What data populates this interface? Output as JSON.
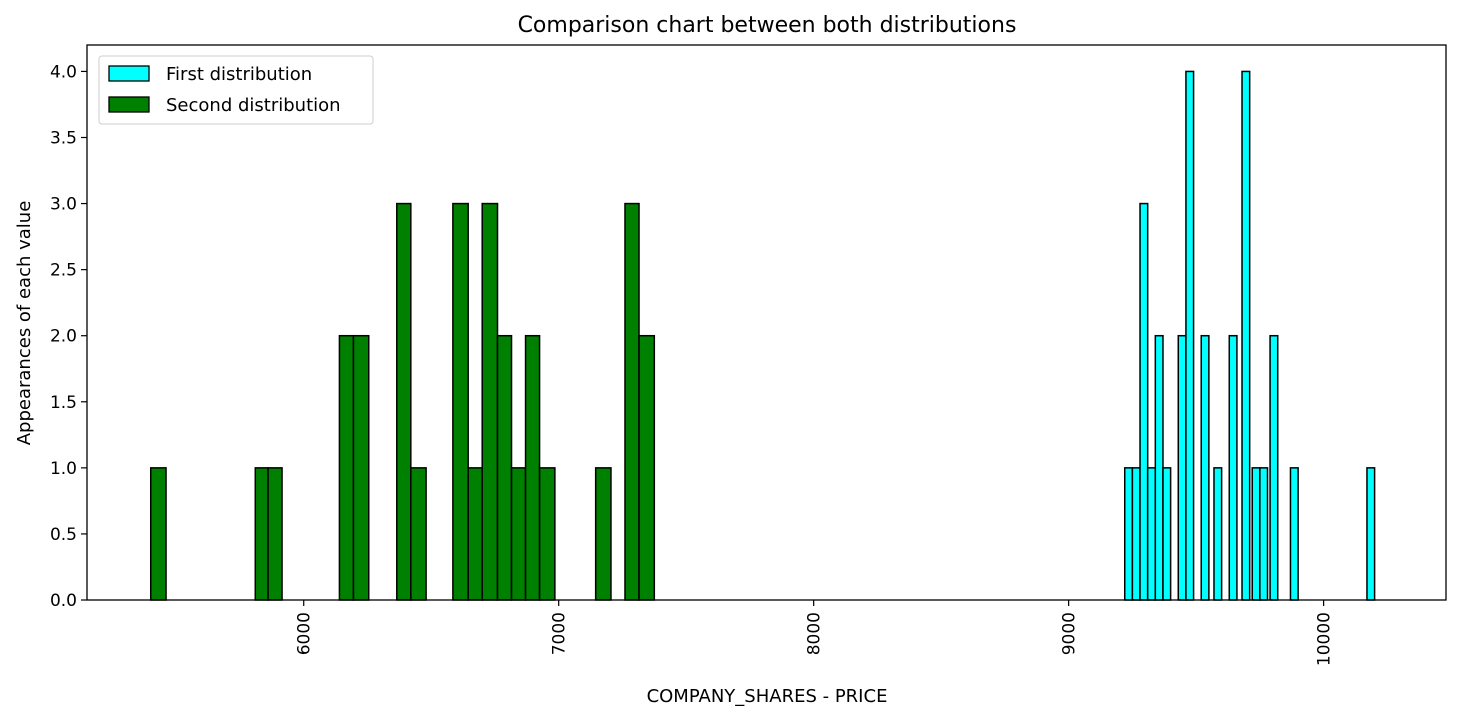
{
  "chart_data": {
    "type": "bar",
    "title": "Comparison chart between both distributions",
    "xlabel": "COMPANY_SHARES - PRICE",
    "ylabel": "Appearances of each value",
    "xlim": [
      5150,
      10480
    ],
    "ylim": [
      0,
      4.2
    ],
    "x_ticks": [
      6000,
      7000,
      8000,
      9000,
      10000
    ],
    "y_ticks": [
      0.0,
      0.5,
      1.0,
      1.5,
      2.0,
      2.5,
      3.0,
      3.5,
      4.0
    ],
    "legend_position": "top-left",
    "grid": false,
    "series": [
      {
        "name": "First distribution",
        "color": "#00ffff",
        "bins": [
          {
            "x0": 9220,
            "x1": 9250,
            "count": 1
          },
          {
            "x0": 9250,
            "x1": 9280,
            "count": 1
          },
          {
            "x0": 9280,
            "x1": 9310,
            "count": 3
          },
          {
            "x0": 9310,
            "x1": 9340,
            "count": 1
          },
          {
            "x0": 9340,
            "x1": 9370,
            "count": 2
          },
          {
            "x0": 9370,
            "x1": 9400,
            "count": 1
          },
          {
            "x0": 9430,
            "x1": 9460,
            "count": 2
          },
          {
            "x0": 9460,
            "x1": 9490,
            "count": 4
          },
          {
            "x0": 9520,
            "x1": 9550,
            "count": 2
          },
          {
            "x0": 9570,
            "x1": 9600,
            "count": 1
          },
          {
            "x0": 9630,
            "x1": 9660,
            "count": 2
          },
          {
            "x0": 9680,
            "x1": 9710,
            "count": 4
          },
          {
            "x0": 9720,
            "x1": 9750,
            "count": 1
          },
          {
            "x0": 9750,
            "x1": 9780,
            "count": 1
          },
          {
            "x0": 9790,
            "x1": 9820,
            "count": 2
          },
          {
            "x0": 9870,
            "x1": 9900,
            "count": 1
          },
          {
            "x0": 10170,
            "x1": 10200,
            "count": 1
          }
        ]
      },
      {
        "name": "Second distribution",
        "color": "#008000",
        "bins": [
          {
            "x0": 5400,
            "x1": 5460,
            "count": 1
          },
          {
            "x0": 5810,
            "x1": 5860,
            "count": 1
          },
          {
            "x0": 5860,
            "x1": 5915,
            "count": 1
          },
          {
            "x0": 6140,
            "x1": 6195,
            "count": 2
          },
          {
            "x0": 6195,
            "x1": 6255,
            "count": 2
          },
          {
            "x0": 6365,
            "x1": 6420,
            "count": 3
          },
          {
            "x0": 6420,
            "x1": 6480,
            "count": 1
          },
          {
            "x0": 6585,
            "x1": 6645,
            "count": 3
          },
          {
            "x0": 6645,
            "x1": 6700,
            "count": 1
          },
          {
            "x0": 6700,
            "x1": 6760,
            "count": 3
          },
          {
            "x0": 6760,
            "x1": 6815,
            "count": 2
          },
          {
            "x0": 6815,
            "x1": 6870,
            "count": 1
          },
          {
            "x0": 6870,
            "x1": 6925,
            "count": 2
          },
          {
            "x0": 6925,
            "x1": 6985,
            "count": 1
          },
          {
            "x0": 7145,
            "x1": 7205,
            "count": 1
          },
          {
            "x0": 7260,
            "x1": 7315,
            "count": 3
          },
          {
            "x0": 7315,
            "x1": 7375,
            "count": 2
          }
        ]
      }
    ]
  }
}
